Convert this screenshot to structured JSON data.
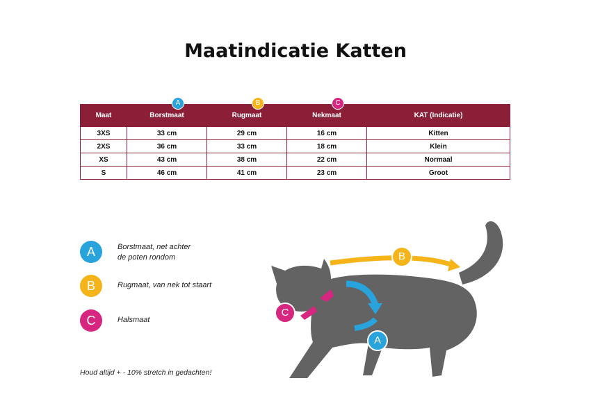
{
  "title": "Maatindicatie Katten",
  "colors": {
    "header": "#8b1f38",
    "A": "#29a3dc",
    "B": "#f4b41a",
    "C": "#d6267f",
    "cat": "#636363"
  },
  "table": {
    "headers": [
      "Maat",
      "Borstmaat",
      "Rugmaat",
      "Nekmaat",
      "KAT (Indicatie)"
    ],
    "header_badges": {
      "1": "A",
      "2": "B",
      "3": "C"
    },
    "rows": [
      [
        "3XS",
        "33 cm",
        "29 cm",
        "16 cm",
        "Kitten"
      ],
      [
        "2XS",
        "36 cm",
        "33 cm",
        "18 cm",
        "Klein"
      ],
      [
        "XS",
        "43 cm",
        "38 cm",
        "22 cm",
        "Normaal"
      ],
      [
        "S",
        "46 cm",
        "41 cm",
        "23 cm",
        "Groot"
      ]
    ]
  },
  "legend": [
    {
      "letter": "A",
      "line1": "Borstmaat, net achter",
      "line2": "de poten rondom"
    },
    {
      "letter": "B",
      "line1": "Rugmaat, van nek tot staart",
      "line2": ""
    },
    {
      "letter": "C",
      "line1": "Halsmaat",
      "line2": ""
    }
  ],
  "note": "Houd altijd + - 10% stretch in gedachten!",
  "diagram": {
    "badge_a": "A",
    "badge_b": "B",
    "badge_c": "C",
    "icon": "cat-silhouette-icon"
  }
}
